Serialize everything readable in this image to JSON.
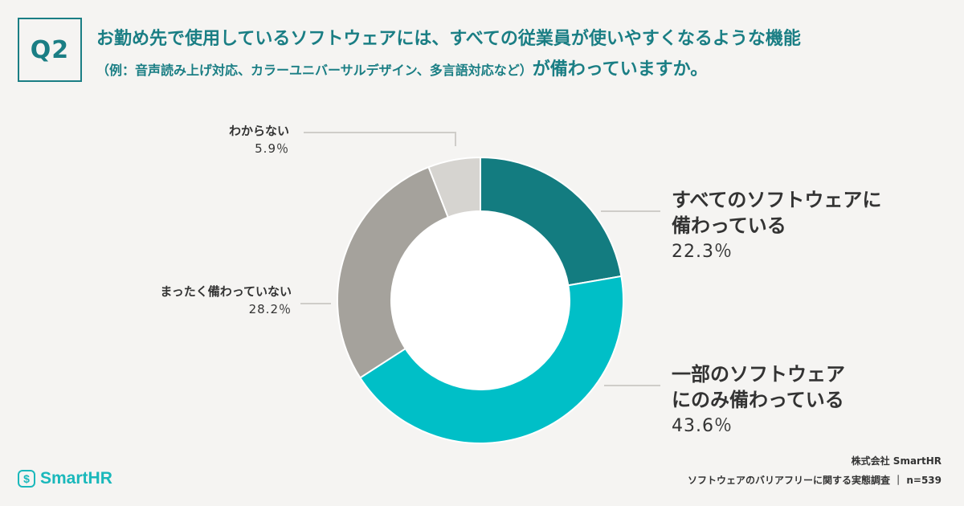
{
  "question": {
    "badge": "Q2",
    "line1": "お勤め先で使用しているソフトウェアには、すべての従業員が使いやすくなるような機能",
    "line2_small": "（例：音声読み上げ対応、カラーユニバーサルデザイン、多言語対応など）",
    "line2_big": "が備わっていますか。"
  },
  "chart_data": {
    "type": "pie",
    "donut": true,
    "categories": [
      "すべてのソフトウェアに備わっている",
      "一部のソフトウェアにのみ備わっている",
      "まったく備わっていない",
      "わからない"
    ],
    "values": [
      22.3,
      43.6,
      28.2,
      5.9
    ],
    "unit": "%",
    "colors": [
      "#137c80",
      "#00bfc7",
      "#a5a29c",
      "#d6d4d0"
    ],
    "labels": [
      {
        "line1": "すべてのソフトウェアに",
        "line2": "備わっている",
        "value": "22.3％"
      },
      {
        "line1": "一部のソフトウェア",
        "line2": "にのみ備わっている",
        "value": "43.6％"
      },
      {
        "line1": "まったく備わっていない",
        "value": "28.2％"
      },
      {
        "line1": "わからない",
        "value": "5.9％"
      }
    ]
  },
  "footer": {
    "logo_text": "SmartHR",
    "logo_symbol": "$",
    "company": "株式会社 SmartHR",
    "survey": "ソフトウェアのバリアフリーに関する実態調査 ｜ n=539"
  }
}
